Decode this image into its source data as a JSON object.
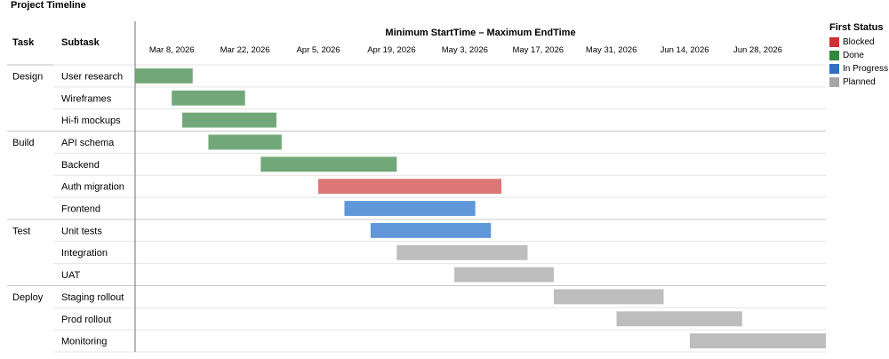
{
  "page_title": "Project Timeline",
  "chart_data": {
    "type": "gantt",
    "title": "Minimum StartTime – Maximum EndTime",
    "column_headers": {
      "task": "Task",
      "subtask": "Subtask"
    },
    "x_range": [
      "2026-03-01",
      "2026-07-11"
    ],
    "x_ticks": [
      {
        "date": "2026-03-08",
        "label": "Mar 8, 2026"
      },
      {
        "date": "2026-03-22",
        "label": "Mar 22, 2026"
      },
      {
        "date": "2026-04-05",
        "label": "Apr 5, 2026"
      },
      {
        "date": "2026-04-19",
        "label": "Apr 19, 2026"
      },
      {
        "date": "2026-05-03",
        "label": "May 3, 2026"
      },
      {
        "date": "2026-05-17",
        "label": "May 17, 2026"
      },
      {
        "date": "2026-05-31",
        "label": "May 31, 2026"
      },
      {
        "date": "2026-06-14",
        "label": "Jun 14, 2026"
      },
      {
        "date": "2026-06-28",
        "label": "Jun 28, 2026"
      }
    ],
    "legend_title": "First Status",
    "legend_position": "right",
    "statuses": [
      {
        "name": "Blocked",
        "color": "#cc3333"
      },
      {
        "name": "Done",
        "color": "#2e8b3a"
      },
      {
        "name": "In Progress",
        "color": "#2f6fc4"
      },
      {
        "name": "Planned",
        "color": "#a6a6a6"
      }
    ],
    "bar_colors": {
      "Blocked": "#dd7676",
      "Done": "#72a879",
      "In Progress": "#5f97d8",
      "Planned": "#bdbdbd"
    },
    "rows": [
      {
        "task": "Design",
        "subtask": "User research",
        "start": "2026-03-01",
        "end": "2026-03-12",
        "status": "Done"
      },
      {
        "task": "",
        "subtask": "Wireframes",
        "start": "2026-03-08",
        "end": "2026-03-22",
        "status": "Done"
      },
      {
        "task": "",
        "subtask": "Hi-fi mockups",
        "start": "2026-03-10",
        "end": "2026-03-28",
        "status": "Done"
      },
      {
        "task": "Build",
        "subtask": "API schema",
        "start": "2026-03-15",
        "end": "2026-03-29",
        "status": "Done"
      },
      {
        "task": "",
        "subtask": "Backend",
        "start": "2026-03-25",
        "end": "2026-04-20",
        "status": "Done"
      },
      {
        "task": "",
        "subtask": "Auth migration",
        "start": "2026-04-05",
        "end": "2026-05-10",
        "status": "Blocked"
      },
      {
        "task": "",
        "subtask": "Frontend",
        "start": "2026-04-10",
        "end": "2026-05-05",
        "status": "In Progress"
      },
      {
        "task": "Test",
        "subtask": "Unit tests",
        "start": "2026-04-15",
        "end": "2026-05-08",
        "status": "In Progress"
      },
      {
        "task": "",
        "subtask": "Integration",
        "start": "2026-04-20",
        "end": "2026-05-15",
        "status": "Planned"
      },
      {
        "task": "",
        "subtask": "UAT",
        "start": "2026-05-01",
        "end": "2026-05-20",
        "status": "Planned"
      },
      {
        "task": "Deploy",
        "subtask": "Staging rollout",
        "start": "2026-05-20",
        "end": "2026-06-10",
        "status": "Planned"
      },
      {
        "task": "",
        "subtask": "Prod rollout",
        "start": "2026-06-01",
        "end": "2026-06-25",
        "status": "Planned"
      },
      {
        "task": "",
        "subtask": "Monitoring",
        "start": "2026-06-15",
        "end": "2026-07-11",
        "status": "Planned"
      }
    ]
  }
}
